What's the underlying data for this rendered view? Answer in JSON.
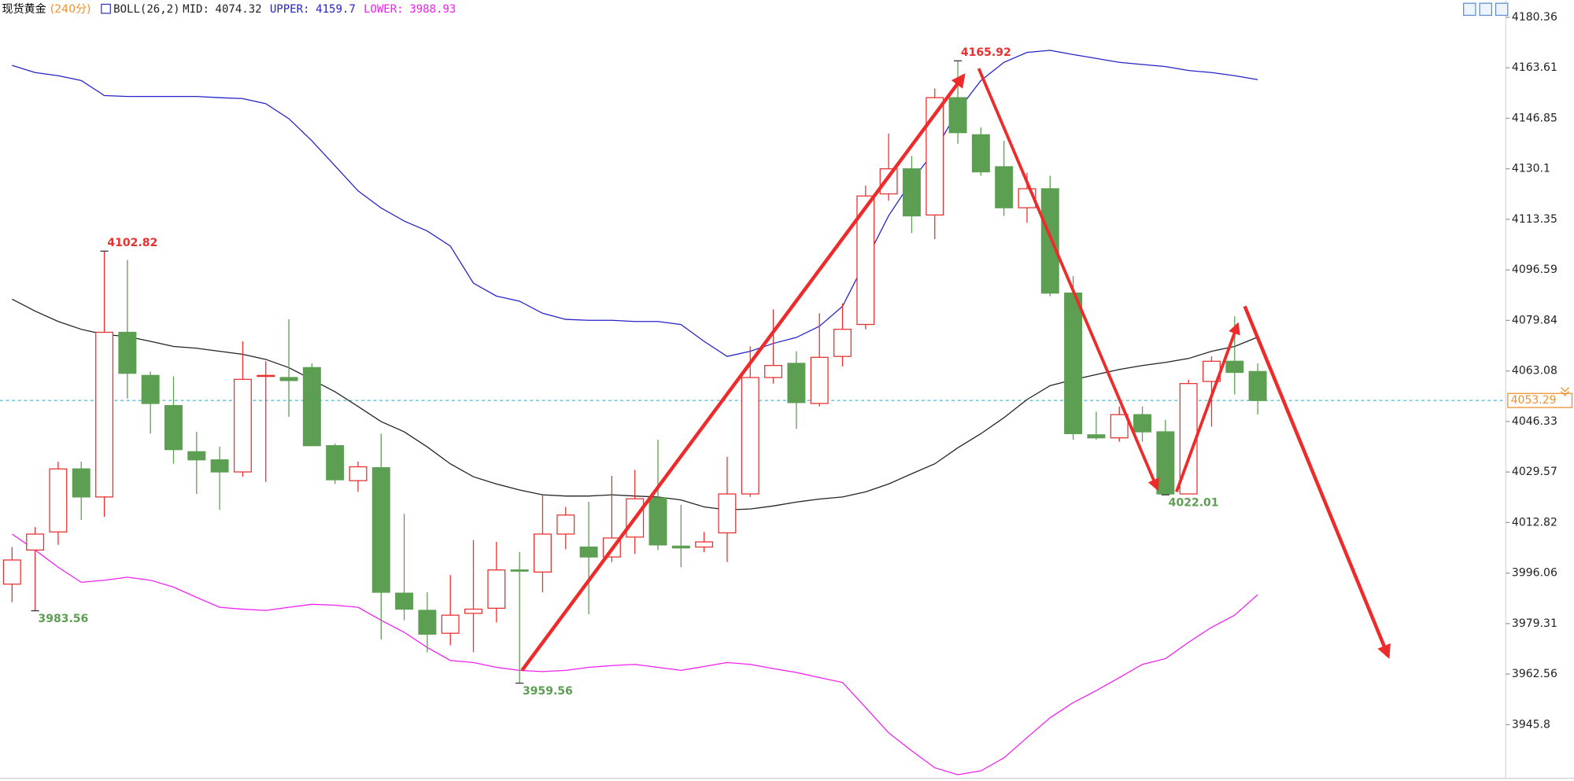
{
  "header": {
    "symbol": "现货黄金",
    "period": "(240分)",
    "indicator": "BOLL(26,2)"
  },
  "chart_data": {
    "type": "candlestick",
    "ylim": [
      3928.2,
      4186.0
    ],
    "yticks": [
      4180.36,
      4163.61,
      4146.85,
      4130.1,
      4113.35,
      4096.59,
      4079.84,
      4063.08,
      4046.33,
      4029.57,
      4012.82,
      3996.06,
      3979.31,
      3962.56,
      3945.8
    ],
    "last_price": 4053.29,
    "up_color": "#e8312f",
    "down_color": "#5c9e52",
    "candles": {
      "open": [
        3992.4,
        4003.7,
        4009.7,
        4030.6,
        4021.3,
        4075.9,
        4061.6,
        4051.6,
        4036.3,
        4033.6,
        4029.6,
        4061.3,
        4060.9,
        4064.2,
        4038.3,
        4026.7,
        4031.0,
        3989.4,
        3983.7,
        3976.1,
        3982.7,
        3984.4,
        3997.1,
        3996.4,
        4009.0,
        4004.7,
        4001.4,
        4008.0,
        4021.0,
        4005.0,
        4004.7,
        4009.4,
        4022.3,
        4060.9,
        4065.6,
        4052.3,
        4067.9,
        4078.5,
        4121.8,
        4130.1,
        4114.8,
        4153.7,
        4141.4,
        4130.8,
        4117.2,
        4123.5,
        4088.9,
        4041.9,
        4040.9,
        4048.6,
        4042.9,
        4022.3,
        4059.6,
        4066.3,
        4062.9
      ],
      "high": [
        4004.7,
        4011.3,
        4033.0,
        4033.0,
        4102.82,
        4099.9,
        4062.9,
        4061.3,
        4042.9,
        4038.0,
        4072.9,
        4066.3,
        4080.2,
        4065.6,
        4039.0,
        4033.0,
        4042.3,
        4015.7,
        3989.7,
        3995.4,
        4007.0,
        4006.4,
        4003.0,
        4022.3,
        4018.0,
        4019.7,
        4028.3,
        4030.3,
        4040.3,
        4018.7,
        4009.7,
        4034.6,
        4071.2,
        4083.5,
        4069.6,
        4082.2,
        4085.5,
        4124.5,
        4141.8,
        4134.4,
        4156.7,
        4165.92,
        4143.8,
        4139.4,
        4128.8,
        4127.8,
        4094.5,
        4049.6,
        4051.3,
        4051.3,
        4046.9,
        4060.2,
        4067.9,
        4081.2,
        4065.6
      ],
      "low": [
        3986.4,
        3983.56,
        4005.4,
        4013.7,
        4014.7,
        4053.9,
        4042.3,
        4032.3,
        4022.3,
        4017.0,
        4028.0,
        4026.3,
        4047.9,
        4038.3,
        4025.6,
        4023.0,
        3974.1,
        3980.4,
        3969.8,
        3972.1,
        3969.8,
        3979.7,
        3959.56,
        3989.7,
        4004.0,
        3982.4,
        3999.7,
        4002.4,
        4003.7,
        3998.0,
        4003.0,
        3999.7,
        4021.3,
        4058.9,
        4043.9,
        4051.3,
        4064.6,
        4076.9,
        4119.5,
        4108.8,
        4106.8,
        4138.4,
        4127.8,
        4114.5,
        4112.2,
        4087.9,
        4040.3,
        4040.3,
        4039.6,
        4039.6,
        4022.01,
        4022.3,
        4044.6,
        4055.3,
        4048.6
      ],
      "close": [
        4000.4,
        4009.0,
        4030.6,
        4021.3,
        4075.9,
        4062.3,
        4052.3,
        4037.0,
        4033.6,
        4029.6,
        4060.3,
        4061.6,
        4059.9,
        4038.3,
        4027.0,
        4031.3,
        3989.7,
        3984.1,
        3975.8,
        3982.1,
        3984.1,
        3997.1,
        3996.7,
        4009.0,
        4015.3,
        4001.4,
        4007.7,
        4020.7,
        4005.4,
        4004.4,
        4006.4,
        4022.3,
        4060.9,
        4064.9,
        4052.6,
        4067.6,
        4076.9,
        4121.1,
        4130.1,
        4114.5,
        4153.7,
        4142.1,
        4129.1,
        4117.2,
        4123.5,
        4088.9,
        4042.3,
        4040.9,
        4048.6,
        4042.9,
        4022.3,
        4058.9,
        4066.3,
        4062.6,
        4053.29
      ]
    },
    "series": [
      {
        "name": "MID:",
        "color": "#222222",
        "last": 4074.32,
        "values": [
          4086.9,
          4082.9,
          4079.5,
          4076.9,
          4075.2,
          4074.5,
          4072.9,
          4071.2,
          4070.6,
          4069.6,
          4068.6,
          4066.9,
          4064.2,
          4060.2,
          4056.2,
          4051.3,
          4046.3,
          4042.9,
          4037.9,
          4032.3,
          4028.0,
          4025.6,
          4023.6,
          4022.0,
          4021.6,
          4021.6,
          4022.0,
          4021.6,
          4021.3,
          4020.3,
          4018.0,
          4017.0,
          4017.3,
          4018.3,
          4019.6,
          4020.6,
          4021.3,
          4023.0,
          4025.6,
          4029.0,
          4032.3,
          4037.6,
          4042.3,
          4047.6,
          4053.6,
          4058.2,
          4060.2,
          4061.9,
          4063.6,
          4064.9,
          4065.9,
          4067.2,
          4069.6,
          4071.2,
          4074.3
        ]
      },
      {
        "name": "UPPER:",
        "color": "#2323c8",
        "last": 4159.7,
        "values": [
          4164.4,
          4162.0,
          4161.0,
          4159.4,
          4154.4,
          4154.1,
          4154.1,
          4154.1,
          4154.1,
          4153.7,
          4153.4,
          4151.7,
          4146.7,
          4139.4,
          4131.1,
          4122.8,
          4117.1,
          4112.8,
          4109.5,
          4104.5,
          4092.2,
          4087.9,
          4086.2,
          4082.2,
          4080.2,
          4079.9,
          4079.9,
          4079.5,
          4079.5,
          4078.5,
          4072.9,
          4067.9,
          4069.6,
          4072.2,
          4074.2,
          4077.9,
          4084.5,
          4099.5,
          4114.5,
          4126.1,
          4136.1,
          4149.4,
          4159.4,
          4165.4,
          4168.7,
          4169.4,
          4168.0,
          4166.7,
          4165.4,
          4164.7,
          4164.0,
          4162.7,
          4162.0,
          4161.0,
          4159.7
        ]
      },
      {
        "name": "LOWER:",
        "color": "#f020f0",
        "last": 3988.93,
        "values": [
          4009.0,
          4003.7,
          3998.0,
          3993.0,
          3993.7,
          3994.7,
          3993.7,
          3991.4,
          3988.0,
          3984.7,
          3984.1,
          3983.7,
          3984.7,
          3985.7,
          3985.4,
          3984.7,
          3980.4,
          3976.4,
          3971.4,
          3967.1,
          3966.4,
          3964.8,
          3963.8,
          3963.4,
          3963.8,
          3964.8,
          3965.4,
          3965.8,
          3964.8,
          3963.8,
          3965.1,
          3966.4,
          3965.8,
          3964.4,
          3963.1,
          3961.4,
          3959.8,
          3951.5,
          3943.1,
          3937.1,
          3931.5,
          3929.2,
          3930.5,
          3934.8,
          3941.5,
          3948.1,
          3953.1,
          3957.1,
          3961.4,
          3965.8,
          3967.7,
          3973.1,
          3978.1,
          3982.1,
          3988.9
        ]
      }
    ]
  }
}
